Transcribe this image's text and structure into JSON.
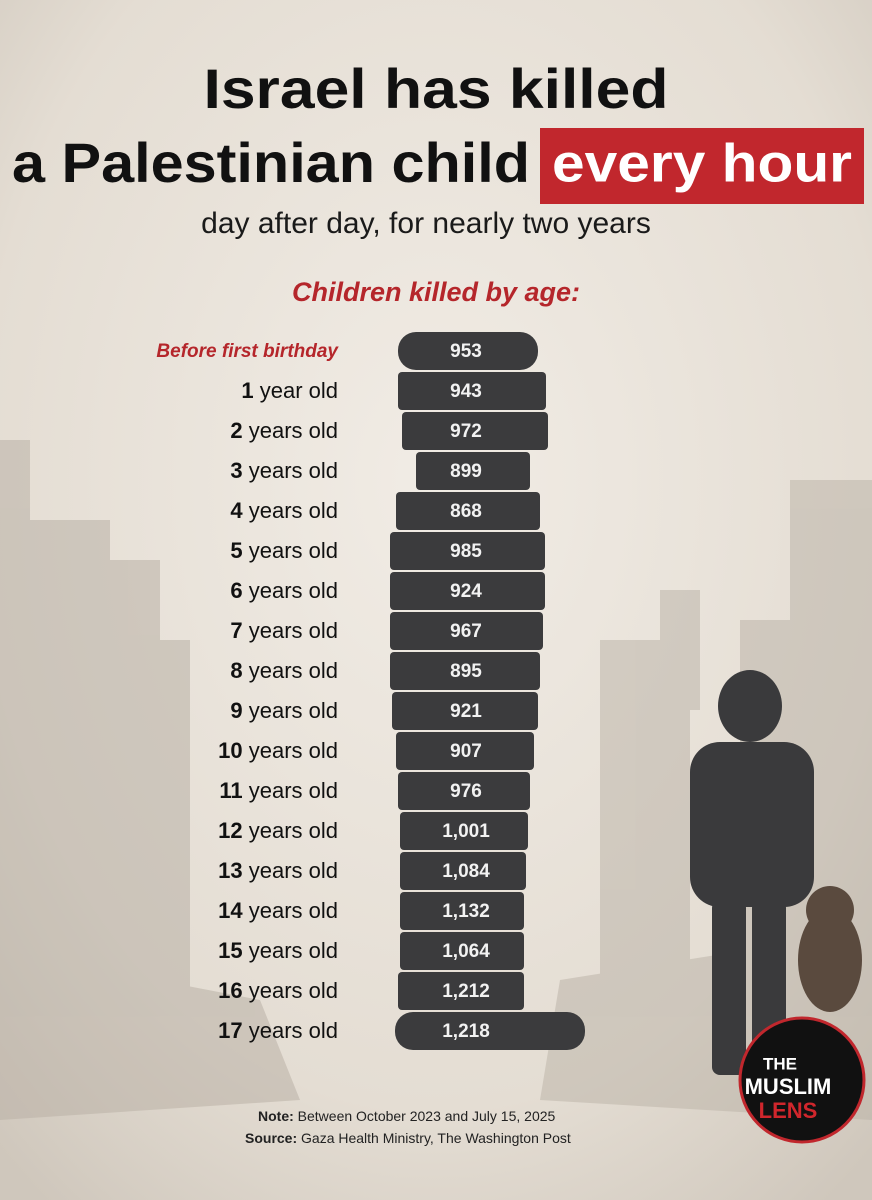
{
  "header": {
    "title_line1": "Israel has killed",
    "title_line2": "a Palestinian child",
    "highlight": "every hour",
    "subtitle": "day after day, for nearly two years"
  },
  "section_title": "Children killed by age:",
  "rows": [
    {
      "label": "Before first birthday",
      "count": "953"
    },
    {
      "age": "1",
      "unit": "year old",
      "count": "943"
    },
    {
      "age": "2",
      "unit": "years old",
      "count": "972"
    },
    {
      "age": "3",
      "unit": "years old",
      "count": "899"
    },
    {
      "age": "4",
      "unit": "years old",
      "count": "868"
    },
    {
      "age": "5",
      "unit": "years old",
      "count": "985"
    },
    {
      "age": "6",
      "unit": "years old",
      "count": "924"
    },
    {
      "age": "7",
      "unit": "years old",
      "count": "967"
    },
    {
      "age": "8",
      "unit": "years old",
      "count": "895"
    },
    {
      "age": "9",
      "unit": "years old",
      "count": "921"
    },
    {
      "age": "10",
      "unit": "years old",
      "count": "907"
    },
    {
      "age": "11",
      "unit": "years old",
      "count": "976"
    },
    {
      "age": "12",
      "unit": "years old",
      "count": "1,001"
    },
    {
      "age": "13",
      "unit": "years old",
      "count": "1,084"
    },
    {
      "age": "14",
      "unit": "years old",
      "count": "1,132"
    },
    {
      "age": "15",
      "unit": "years old",
      "count": "1,064"
    },
    {
      "age": "16",
      "unit": "years old",
      "count": "1,212"
    },
    {
      "age": "17",
      "unit": "years old",
      "count": "1,218"
    }
  ],
  "footer": {
    "note_label": "Note:",
    "note": "Between October 2023 and July 15, 2025",
    "source_label": "Source:",
    "source": "Gaza Health Ministry, The Washington Post"
  },
  "logo": {
    "line1": "THE",
    "line2": "MUSLIM",
    "line3": "LENS"
  }
}
